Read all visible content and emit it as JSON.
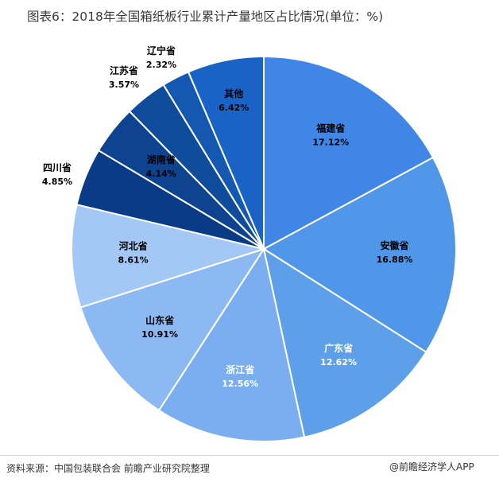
{
  "chart_data": {
    "type": "pie",
    "title": "图表6：2018年全国箱纸板行业累计产量地区占比情况(单位：%)",
    "slices": [
      {
        "label": "福建省",
        "value": 17.12,
        "value_text": "17.12%",
        "color": "#3f86e6",
        "text_color": "#000000",
        "label_pos": "inside"
      },
      {
        "label": "安徽省",
        "value": 16.88,
        "value_text": "16.88%",
        "color": "#5097ea",
        "text_color": "#000000",
        "label_pos": "inside"
      },
      {
        "label": "广东省",
        "value": 12.62,
        "value_text": "12.62%",
        "color": "#5e9fe9",
        "text_color": "#ffffff",
        "label_pos": "inside"
      },
      {
        "label": "浙江省",
        "value": 12.56,
        "value_text": "12.56%",
        "color": "#7aaef0",
        "text_color": "#ffffff",
        "label_pos": "inside"
      },
      {
        "label": "山东省",
        "value": 10.91,
        "value_text": "10.91%",
        "color": "#8db9f2",
        "text_color": "#000000",
        "label_pos": "inside"
      },
      {
        "label": "河北省",
        "value": 8.61,
        "value_text": "8.61%",
        "color": "#a4c8f5",
        "text_color": "#000000",
        "label_pos": "inside"
      },
      {
        "label": "四川省",
        "value": 4.85,
        "value_text": "4.85%",
        "color": "#0a3b86",
        "text_color": "#000000",
        "label_pos": "outside"
      },
      {
        "label": "湖南省",
        "value": 4.14,
        "value_text": "4.14%",
        "color": "#0e438f",
        "text_color": "#000000",
        "label_pos": "inside"
      },
      {
        "label": "江苏省",
        "value": 3.57,
        "value_text": "3.57%",
        "color": "#104c9c",
        "text_color": "#000000",
        "label_pos": "outside"
      },
      {
        "label": "辽宁省",
        "value": 2.32,
        "value_text": "2.32%",
        "color": "#1558b2",
        "text_color": "#000000",
        "label_pos": "outside"
      },
      {
        "label": "其他",
        "value": 6.42,
        "value_text": "6.42%",
        "color": "#1a63c6",
        "text_color": "#000000",
        "label_pos": "inside"
      }
    ],
    "start": "top",
    "direction": "clockwise"
  },
  "footer": {
    "source": "资料来源：中国包装联合会 前瞻产业研究院整理",
    "watermark": "@前瞻经济学人APP"
  }
}
